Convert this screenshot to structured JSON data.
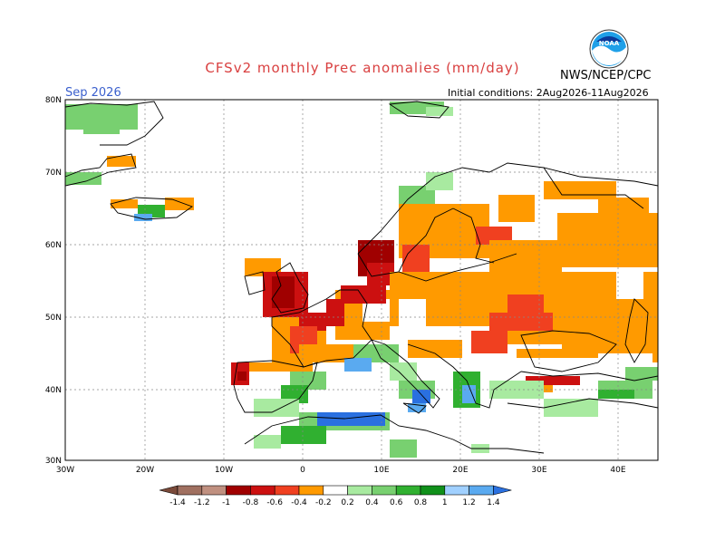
{
  "header": {
    "title": "CFSv2 monthly Prec anomalies (mm/day)",
    "month": "Sep 2026",
    "initial_conditions": "Initial conditions: 2Aug2026-11Aug2026",
    "agency": "NWS/NCEP/CPC",
    "logo_text": "NOAA"
  },
  "axes": {
    "lat_labels": [
      "80N",
      "70N",
      "60N",
      "50N",
      "40N",
      "30N"
    ],
    "lon_labels": [
      "30W",
      "20W",
      "10W",
      "0",
      "10E",
      "20E",
      "30E",
      "40E"
    ]
  },
  "colorbar": {
    "labels": [
      "-1.4",
      "-1.2",
      "-1",
      "-0.8",
      "-0.6",
      "-0.4",
      "-0.2",
      "0.2",
      "0.4",
      "0.6",
      "0.8",
      "1",
      "1.2",
      "1.4"
    ],
    "colors": [
      "#7a4a3a",
      "#a07060",
      "#c09080",
      "#a00000",
      "#cc1010",
      "#f04020",
      "#ff9a00",
      "#ffffff",
      "#a8eaa0",
      "#78d070",
      "#30b030",
      "#10901a",
      "#a0d0ff",
      "#5aaaf0",
      "#2a70e0"
    ]
  },
  "palette": {
    "dry_strong": "#a00000",
    "dry_medium": "#f04020",
    "dry_light": "#ff9a00",
    "wet_light": "#a8eaa0",
    "wet_medium": "#78d070",
    "wet_strong": "#30b030",
    "wet_blue": "#2a70e0",
    "wet_lightblue": "#5aaaf0",
    "dry_brown": "#7a4a3a"
  }
}
